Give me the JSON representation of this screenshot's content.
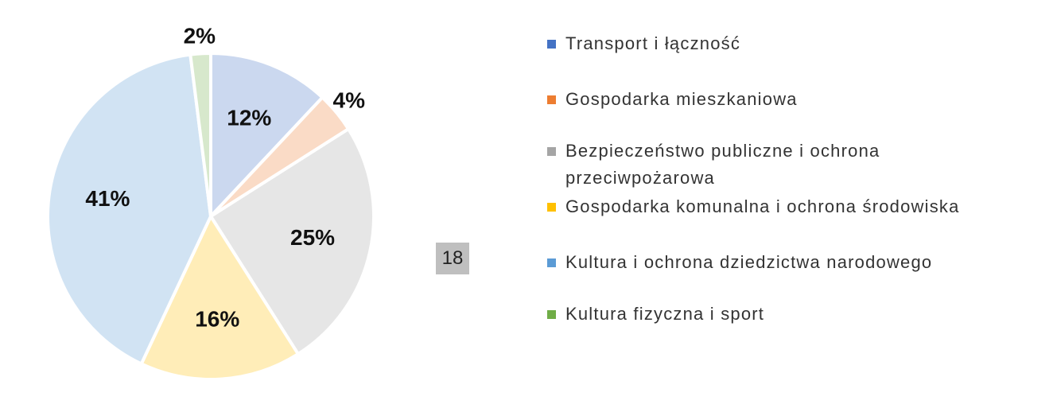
{
  "chart_data": {
    "type": "pie",
    "categories": [
      "Transport i łączność",
      "Gospodarka mieszkaniowa",
      "Bezpieczeństwo publiczne i ochrona przeciwpożarowa",
      "Gospodarka komunalna i ochrona środowiska",
      "Kultura i ochrona dziedzictwa narodowego",
      "Kultura fizyczna i sport"
    ],
    "values": [
      12,
      4,
      25,
      16,
      41,
      2
    ],
    "value_labels": [
      "12%",
      "4%",
      "25%",
      "16%",
      "41%",
      "2%"
    ],
    "colors": [
      "#4472c4",
      "#ed7d31",
      "#a5a5a5",
      "#ffc000",
      "#5b9bd5",
      "#70ad47"
    ],
    "legend": "right"
  },
  "slide_number": 18
}
